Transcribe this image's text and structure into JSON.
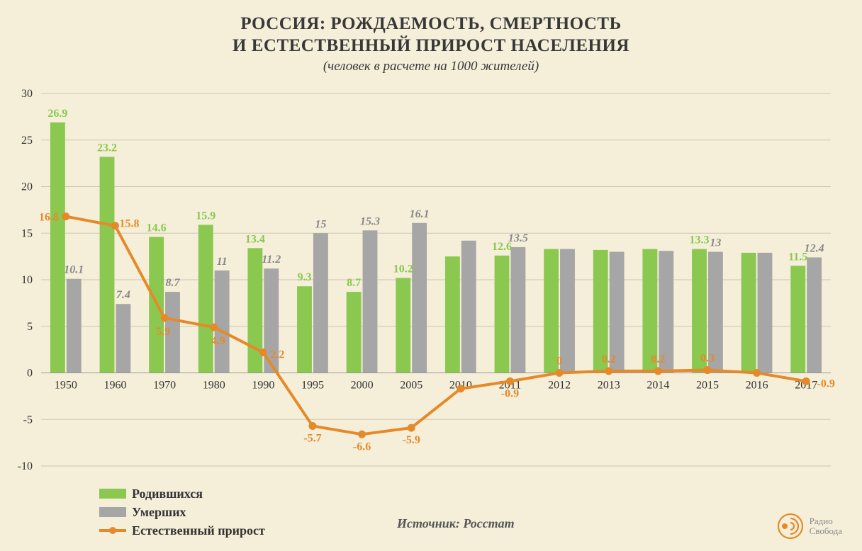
{
  "header": {
    "title_line1": "РОССИЯ: РОЖДАЕМОСТЬ, СМЕРТНОСТЬ",
    "title_line2": "И ЕСТЕСТВЕННЫЙ ПРИРОСТ НАСЕЛЕНИЯ",
    "subtitle": "(человек в расчете на 1000 жителей)",
    "title_fontsize": 25,
    "subtitle_fontsize": 19,
    "title_color": "#383838"
  },
  "chart": {
    "type": "bar+line",
    "background_color": "#f5efd9",
    "grid_color": "#cbc6b3",
    "axis_color": "#999999",
    "ylim": [
      -10,
      30
    ],
    "ytick_step": 5,
    "yticks": [
      -10,
      -5,
      0,
      5,
      10,
      15,
      20,
      25,
      30
    ],
    "categories": [
      "1950",
      "1960",
      "1970",
      "1980",
      "1990",
      "1995",
      "2000",
      "2005",
      "2010",
      "2011",
      "2012",
      "2013",
      "2014",
      "2015",
      "2016",
      "2017"
    ],
    "bar_width": 0.3,
    "label_fontsize": 16,
    "data_label_fontsize": 16,
    "series": {
      "born": {
        "label": "Родившихся",
        "color": "#8bc850",
        "values": [
          26.9,
          23.2,
          14.6,
          15.9,
          13.4,
          9.3,
          8.7,
          10.2,
          12.5,
          12.6,
          13.3,
          13.2,
          13.3,
          13.3,
          12.9,
          11.5
        ],
        "data_labels": [
          "26.9",
          "23.2",
          "14.6",
          "15.9",
          "13.4",
          "9.3",
          "8.7",
          "10.2",
          "",
          "12.6",
          "",
          "",
          "",
          "13.3",
          "",
          "11.5"
        ]
      },
      "died": {
        "label": "Умерших",
        "color": "#a6a6a6",
        "label_color": "#888888",
        "values": [
          10.1,
          7.4,
          8.7,
          11.0,
          11.2,
          15.0,
          15.3,
          16.1,
          14.2,
          13.5,
          13.3,
          13.0,
          13.1,
          13.0,
          12.9,
          12.4
        ],
        "data_labels": [
          "10.1",
          "7.4",
          "8.7",
          "11",
          "11.2",
          "15",
          "15.3",
          "16.1",
          "",
          "13.5",
          "",
          "",
          "",
          "13",
          "",
          "12.4"
        ]
      },
      "natural": {
        "label": "Естественный прирост",
        "color": "#e58a2a",
        "line_width": 4,
        "marker_radius": 5,
        "values": [
          16.8,
          15.8,
          5.9,
          4.9,
          2.2,
          -5.7,
          -6.6,
          -5.9,
          -1.7,
          -0.9,
          0.0,
          0.2,
          0.2,
          0.3,
          0.0,
          -0.9
        ],
        "data_labels": [
          "16.8",
          "15.8",
          "5.9",
          "4.9",
          "2.2",
          "-5.7",
          "-6.6",
          "-5.9",
          "",
          "-0.9",
          "0",
          "0.2",
          "0.2",
          "0.3",
          "",
          "-0.9"
        ]
      }
    }
  },
  "legend": {
    "items": [
      {
        "key": "born",
        "label": "Родившихся",
        "color": "#8bc850",
        "type": "bar"
      },
      {
        "key": "died",
        "label": "Умерших",
        "color": "#a6a6a6",
        "type": "bar"
      },
      {
        "key": "natural",
        "label": "Естественный прирост",
        "color": "#e58a2a",
        "type": "line"
      }
    ]
  },
  "source": {
    "text": "Источник: Росстат"
  },
  "logo": {
    "line1": "Радио",
    "line2": "Свобода",
    "color": "#e58a2a"
  }
}
